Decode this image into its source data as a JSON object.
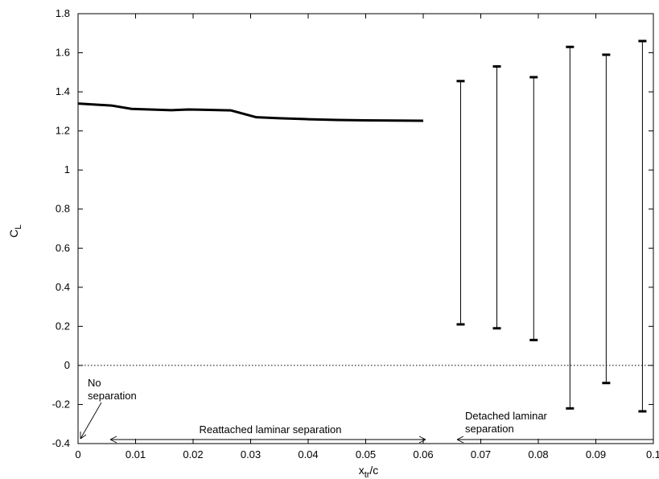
{
  "chart_data": {
    "type": "line",
    "xlabel": "x",
    "xlabel_sub": "tr",
    "xlabel_suffix": "/c",
    "ylabel": "C",
    "ylabel_sub": "L",
    "xlim": [
      0,
      0.1
    ],
    "ylim": [
      -0.4,
      1.8
    ],
    "xticks": [
      0,
      0.01,
      0.02,
      0.03,
      0.04,
      0.05,
      0.06,
      0.07,
      0.08,
      0.09,
      0.1
    ],
    "xtick_labels": [
      "0",
      "0.01",
      "0.02",
      "0.03",
      "0.04",
      "0.05",
      "0.06",
      "0.07",
      "0.08",
      "0.09",
      "0.1"
    ],
    "yticks": [
      -0.4,
      -0.2,
      0,
      0.2,
      0.4,
      0.6,
      0.8,
      1,
      1.2,
      1.4,
      1.6,
      1.8
    ],
    "ytick_labels": [
      "-0.4",
      "-0.2",
      "0",
      "0.2",
      "0.4",
      "0.6",
      "0.8",
      "1",
      "1.2",
      "1.4",
      "1.6",
      "1.8"
    ],
    "grid": false,
    "zero_line": true,
    "series": [
      {
        "style": "line",
        "x": [
          0,
          0.0058,
          0.0093,
          0.0162,
          0.0192,
          0.0266,
          0.031,
          0.035,
          0.04,
          0.045,
          0.05,
          0.055,
          0.06
        ],
        "y": [
          1.34,
          1.33,
          1.313,
          1.306,
          1.31,
          1.305,
          1.27,
          1.265,
          1.26,
          1.256,
          1.254,
          1.253,
          1.252
        ]
      },
      {
        "style": "errorbar",
        "x": [
          0.0665,
          0.0728,
          0.0792,
          0.0855,
          0.0918,
          0.0981
        ],
        "low": [
          0.21,
          0.19,
          0.13,
          -0.22,
          -0.09,
          -0.235
        ],
        "high": [
          1.455,
          1.53,
          1.475,
          1.63,
          1.59,
          1.66
        ]
      }
    ],
    "annotations": {
      "no_separation_line1": "No",
      "no_separation_line2": "separation",
      "reattached": "Reattached laminar separation",
      "detached_line1": "Detached laminar",
      "detached_line2": "separation"
    }
  }
}
